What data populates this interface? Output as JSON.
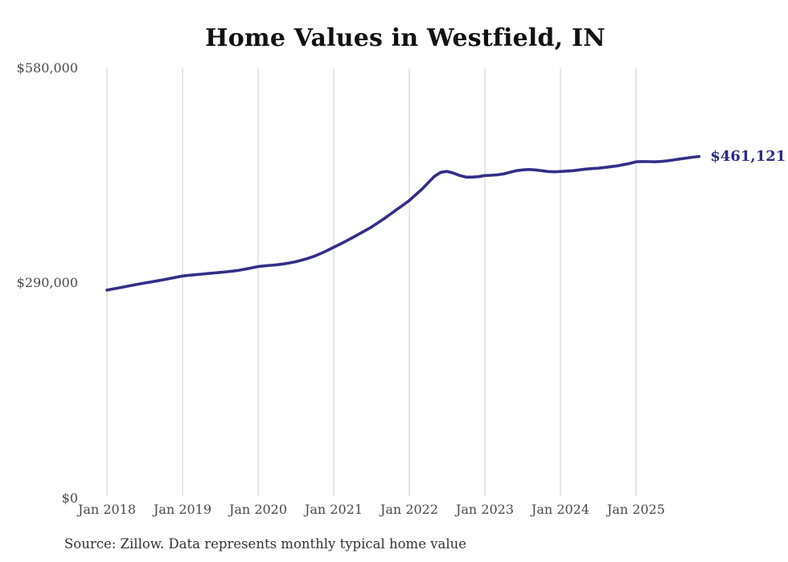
{
  "page": {
    "background": "#ffffff"
  },
  "header": {
    "title": "Home Values in Westfield, IN"
  },
  "footer": {
    "source_note": "Source: Zillow. Data represents monthly typical home value"
  },
  "chart_data": {
    "type": "line",
    "title": "Home Values in Westfield, IN",
    "xlabel": "",
    "ylabel": "",
    "frequency": "monthly",
    "x_range": [
      "Jan 2018",
      "Nov 2025"
    ],
    "x_tick_labels": [
      "Jan 2018",
      "Jan 2019",
      "Jan 2020",
      "Jan 2021",
      "Jan 2022",
      "Jan 2023",
      "Jan 2024",
      "Jan 2025"
    ],
    "y_tick_labels": [
      "$0",
      "$290,000",
      "$580,000"
    ],
    "y_ticks": [
      0,
      290000,
      580000
    ],
    "ylim": [
      0,
      580000
    ],
    "grid": "vertical",
    "legend": "none",
    "end_label": "$461,121",
    "last_value": 461121,
    "colors": {
      "line": "#332e87",
      "grid": "#cccccc",
      "axis_text": "#4a4a4a",
      "title": "#111111",
      "end_label": "#2d2a85",
      "source": "#333333"
    },
    "series": [
      {
        "name": "Typical home value",
        "start": "2018-01",
        "values": [
          281000,
          282500,
          284200,
          285800,
          287400,
          289000,
          290500,
          292000,
          293500,
          295000,
          296600,
          298300,
          300000,
          300900,
          301700,
          302500,
          303300,
          304100,
          304900,
          305700,
          306600,
          307800,
          309300,
          311000,
          312800,
          313600,
          314400,
          315200,
          316200,
          317600,
          319300,
          321500,
          324000,
          327000,
          330500,
          334500,
          338800,
          342900,
          347200,
          351800,
          356500,
          361200,
          366000,
          371500,
          377300,
          383400,
          389500,
          395600,
          401800,
          409400,
          417000,
          425700,
          434400,
          439800,
          441000,
          438700,
          435500,
          433300,
          433300,
          434000,
          435500,
          435800,
          436500,
          437700,
          439800,
          442000,
          443100,
          443600,
          443100,
          442000,
          440900,
          440500,
          440900,
          441500,
          442000,
          443100,
          444200,
          444800,
          445300,
          446300,
          447400,
          448500,
          450100,
          451800,
          454000,
          454300,
          454200,
          454000,
          454500,
          455300,
          456500,
          457800,
          459000,
          460200,
          461121
        ]
      }
    ]
  }
}
